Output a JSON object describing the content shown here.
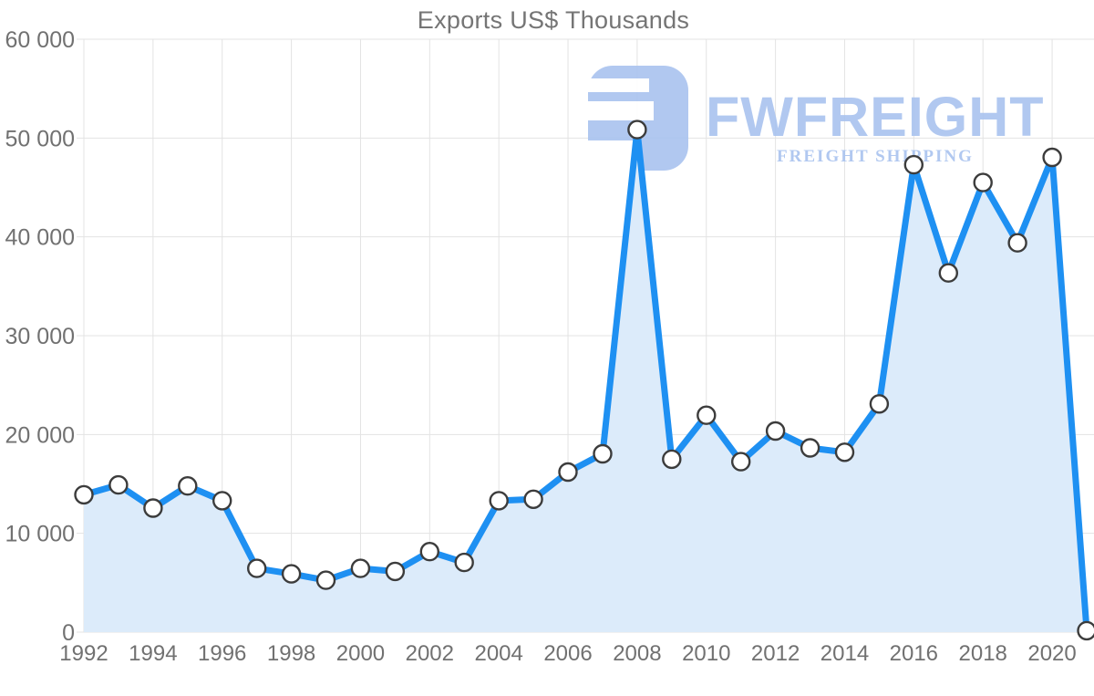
{
  "chart": {
    "title": "Exports US$ Thousands"
  },
  "watermark": {
    "brand": "FWFREIGHT",
    "tagline": "FREIGHT SHIPPING",
    "color": "#a9c3ef"
  },
  "chart_data": {
    "type": "area",
    "title": "Exports US$ Thousands",
    "xlabel": "",
    "ylabel": "",
    "grid": true,
    "legend": false,
    "marker": "circle",
    "ylim": [
      0,
      60000
    ],
    "x": [
      1992,
      1993,
      1994,
      1995,
      1996,
      1997,
      1998,
      1999,
      2000,
      2001,
      2002,
      2003,
      2004,
      2005,
      2006,
      2007,
      2008,
      2009,
      2010,
      2011,
      2012,
      2013,
      2014,
      2015,
      2016,
      2017,
      2018,
      2019,
      2020,
      2021
    ],
    "values": [
      13900,
      14900,
      12550,
      14800,
      13300,
      6450,
      5900,
      5250,
      6450,
      6150,
      8150,
      7050,
      13300,
      13450,
      16200,
      18050,
      50850,
      17500,
      21950,
      17250,
      20350,
      18650,
      18200,
      23100,
      47300,
      36350,
      45500,
      39400,
      48050,
      150
    ],
    "y_ticks": [
      0,
      10000,
      20000,
      30000,
      40000,
      50000,
      60000
    ],
    "y_tick_labels": [
      "0",
      "10 000",
      "20 000",
      "30 000",
      "40 000",
      "50 000",
      "60 000"
    ],
    "x_tick_years": [
      1992,
      1994,
      1996,
      1998,
      2000,
      2002,
      2004,
      2006,
      2008,
      2010,
      2012,
      2014,
      2016,
      2018,
      2020
    ],
    "x_tick_labels": [
      "1992",
      "1994",
      "1996",
      "1998",
      "2000",
      "2002",
      "2004",
      "2006",
      "2008",
      "2010",
      "2012",
      "2014",
      "2016",
      "2018",
      "2020"
    ],
    "colors": {
      "line": "#1e90f2",
      "fill": "#dcebfa",
      "marker_fill": "#ffffff",
      "marker_stroke": "#3c3c3c",
      "grid": "#e3e3e3",
      "text": "#717171"
    }
  }
}
